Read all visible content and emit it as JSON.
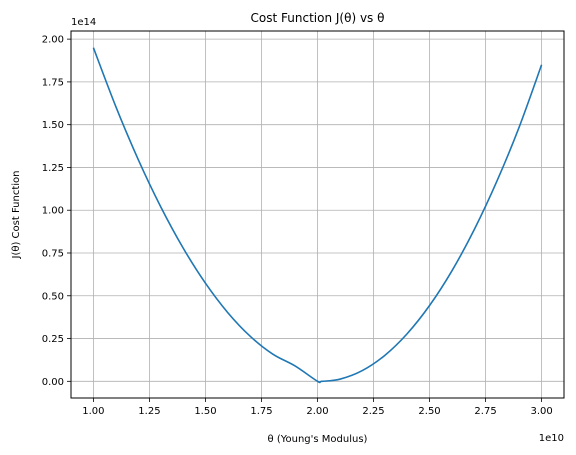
{
  "chart_data": {
    "type": "line",
    "title": "Cost Function J(θ) vs θ",
    "xlabel": "θ (Young's Modulus)",
    "ylabel": "J(θ) Cost Function",
    "x_offset_label": "1e10",
    "y_offset_label": "1e14",
    "xlim": [
      0.9,
      3.1
    ],
    "ylim": [
      -0.0975,
      2.0475
    ],
    "x_ticks": [
      1.0,
      1.25,
      1.5,
      1.75,
      2.0,
      2.25,
      2.5,
      2.75,
      3.0
    ],
    "x_tick_labels": [
      "1.00",
      "1.25",
      "1.50",
      "1.75",
      "2.00",
      "2.25",
      "2.50",
      "2.75",
      "3.00"
    ],
    "y_ticks": [
      0.0,
      0.25,
      0.5,
      0.75,
      1.0,
      1.25,
      1.5,
      1.75,
      2.0
    ],
    "y_tick_labels": [
      "0.00",
      "0.25",
      "0.50",
      "0.75",
      "1.00",
      "1.25",
      "1.50",
      "1.75",
      "2.00"
    ],
    "grid": true,
    "series": [
      {
        "color": "#1f77b4",
        "x": [
          1.0,
          1.1,
          1.2,
          1.3,
          1.4,
          1.5,
          1.6,
          1.7,
          1.8,
          1.9,
          2.0,
          2.02,
          2.1,
          2.2,
          2.3,
          2.4,
          2.5,
          2.6,
          2.7,
          2.8,
          2.9,
          3.0
        ],
        "y": [
          1.95,
          1.606,
          1.296,
          1.021,
          0.78,
          0.5735,
          0.401,
          0.263,
          0.1593,
          0.0899,
          0.0004,
          0.0,
          0.0124,
          0.0627,
          0.1512,
          0.278,
          0.443,
          0.646,
          0.888,
          1.168,
          1.486,
          1.85
        ]
      }
    ]
  }
}
